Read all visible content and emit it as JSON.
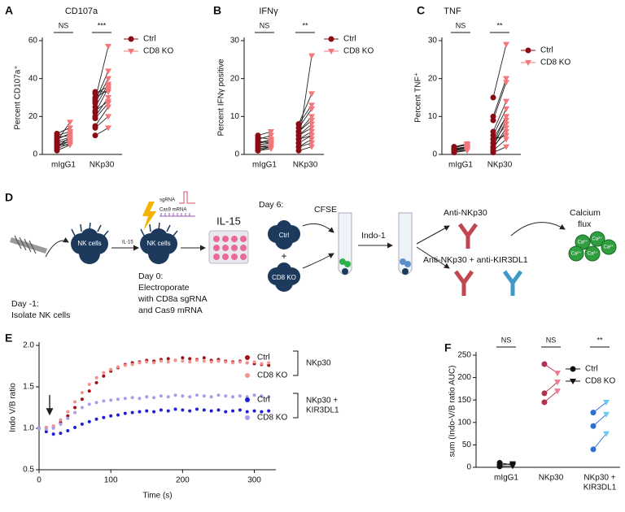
{
  "chart_data": [
    {
      "type": "paired_dot",
      "panel": "A",
      "title": "CD107a",
      "ylabel": "Percent CD107a⁺",
      "categories": [
        "mIgG1",
        "NKp30"
      ],
      "significance": [
        "NS",
        "***"
      ],
      "ylim": [
        0,
        60
      ],
      "yticks": [
        0,
        20,
        40,
        60
      ],
      "series": [
        {
          "name": "Ctrl",
          "color": "#8c0c16",
          "marker": "circle",
          "values": [
            [
              3,
              4,
              5,
              6,
              7,
              8,
              9,
              10,
              11,
              2,
              5,
              7,
              4,
              6
            ],
            [
              10,
              14,
              15,
              20,
              22,
              25,
              27,
              28,
              29,
              30,
              32,
              33,
              23,
              19
            ]
          ]
        },
        {
          "name": "CD8 KO",
          "color": "#f2777a",
          "marker": "triangle",
          "values": [
            [
              6,
              7,
              5,
              8,
              9,
              11,
              10,
              12,
              14,
              5,
              7,
              17,
              9,
              8
            ],
            [
              14,
              20,
              25,
              30,
              35,
              37,
              40,
              44,
              57,
              34,
              36,
              33,
              28,
              27
            ]
          ]
        }
      ]
    },
    {
      "type": "paired_dot",
      "panel": "B",
      "title": "IFNγ",
      "ylabel": "Percent IFNγ positive",
      "categories": [
        "mIgG1",
        "NKp30"
      ],
      "significance": [
        "NS",
        "**"
      ],
      "ylim": [
        0,
        30
      ],
      "yticks": [
        0,
        10,
        20,
        30
      ],
      "series": [
        {
          "name": "Ctrl",
          "color": "#8c0c16",
          "marker": "circle",
          "values": [
            [
              1,
              1.5,
              2,
              2.5,
              3,
              3.5,
              4,
              4.5,
              5,
              2,
              3,
              1,
              2.5,
              3
            ],
            [
              1,
              2,
              3,
              4,
              5,
              6,
              7,
              8,
              3,
              2,
              4,
              5,
              6,
              8
            ]
          ]
        },
        {
          "name": "CD8 KO",
          "color": "#f2777a",
          "marker": "triangle",
          "values": [
            [
              1.5,
              2,
              2,
              3,
              4,
              3,
              5,
              4,
              6,
              2.5,
              3.5,
              2,
              3,
              3.5
            ],
            [
              2,
              3,
              5,
              6,
              8,
              10,
              12,
              13,
              26,
              4,
              5,
              7,
              9,
              16
            ]
          ]
        }
      ]
    },
    {
      "type": "paired_dot",
      "panel": "C",
      "title": "TNF",
      "ylabel": "Percent TNF⁺",
      "categories": [
        "mIgG1",
        "NKp30"
      ],
      "significance": [
        "NS",
        "**"
      ],
      "ylim": [
        0,
        30
      ],
      "yticks": [
        0,
        10,
        20,
        30
      ],
      "series": [
        {
          "name": "Ctrl",
          "color": "#8c0c16",
          "marker": "circle",
          "values": [
            [
              0.5,
              1,
              1.5,
              2,
              1,
              0.8,
              1.2,
              2,
              1.5,
              1,
              0.7,
              1.8,
              1.3,
              1.6
            ],
            [
              0.5,
              1,
              2,
              3,
              4,
              5,
              6,
              9,
              10,
              15,
              2,
              3,
              1.5,
              4
            ]
          ]
        },
        {
          "name": "CD8 KO",
          "color": "#f2777a",
          "marker": "triangle",
          "values": [
            [
              1,
              1.5,
              2,
              2.5,
              1.8,
              1,
              2,
              2.8,
              2,
              1.5,
              1.2,
              2.5,
              2,
              1.8
            ],
            [
              2,
              4,
              6,
              8,
              10,
              12,
              14,
              19,
              20,
              29,
              9,
              10,
              7,
              5
            ]
          ]
        }
      ]
    },
    {
      "type": "scatter",
      "panel": "E",
      "xlabel": "Time (s)",
      "ylabel": "Indo V/B ratio",
      "xlim": [
        0,
        330
      ],
      "xticks": [
        0,
        100,
        200,
        300
      ],
      "ylim": [
        0.5,
        2.0
      ],
      "yticks": [
        0.5,
        {
          "value": 1.0,
          "label": "1.0"
        },
        1.5,
        {
          "value": 2.0,
          "label": "2.0"
        }
      ],
      "legend_groups": [
        [
          "NKp30"
        ],
        [
          "NKp30 +",
          "KIR3DL1"
        ]
      ],
      "x": [
        0,
        10,
        20,
        30,
        40,
        50,
        60,
        70,
        80,
        90,
        100,
        110,
        120,
        130,
        140,
        150,
        160,
        170,
        180,
        190,
        200,
        210,
        220,
        230,
        240,
        250,
        260,
        270,
        280,
        290,
        300,
        310,
        320
      ],
      "series": [
        {
          "name": "Ctrl",
          "color": "#a50f15",
          "values": [
            1.0,
            1.01,
            1.02,
            1.07,
            1.15,
            1.25,
            1.35,
            1.45,
            1.55,
            1.63,
            1.69,
            1.73,
            1.77,
            1.79,
            1.8,
            1.82,
            1.81,
            1.83,
            1.84,
            1.82,
            1.85,
            1.84,
            1.83,
            1.85,
            1.82,
            1.83,
            1.81,
            1.8,
            1.81,
            1.79,
            1.78,
            1.77,
            1.76
          ]
        },
        {
          "name": "CD8 KO",
          "color": "#f4918c",
          "values": [
            1.0,
            1.01,
            1.03,
            1.1,
            1.2,
            1.32,
            1.43,
            1.53,
            1.61,
            1.67,
            1.71,
            1.74,
            1.76,
            1.77,
            1.79,
            1.8,
            1.79,
            1.81,
            1.8,
            1.82,
            1.81,
            1.8,
            1.82,
            1.81,
            1.8,
            1.81,
            1.8,
            1.79,
            1.8,
            1.79,
            1.8,
            1.78,
            1.79
          ]
        },
        {
          "name": "Ctrl",
          "color": "#1f1fd6",
          "values": [
            1.0,
            0.96,
            0.93,
            0.94,
            0.97,
            1.01,
            1.05,
            1.08,
            1.11,
            1.13,
            1.15,
            1.16,
            1.18,
            1.19,
            1.2,
            1.21,
            1.2,
            1.22,
            1.21,
            1.23,
            1.22,
            1.21,
            1.23,
            1.22,
            1.21,
            1.22,
            1.2,
            1.21,
            1.22,
            1.2,
            1.21,
            1.2,
            1.21
          ]
        },
        {
          "name": "CD8 KO",
          "color": "#a99cea",
          "values": [
            1.0,
            0.99,
            1.0,
            1.05,
            1.12,
            1.19,
            1.25,
            1.29,
            1.31,
            1.33,
            1.34,
            1.35,
            1.36,
            1.37,
            1.36,
            1.38,
            1.37,
            1.39,
            1.38,
            1.4,
            1.39,
            1.38,
            1.4,
            1.39,
            1.38,
            1.4,
            1.39,
            1.38,
            1.39,
            1.38,
            1.4,
            1.39,
            1.38
          ]
        }
      ]
    },
    {
      "type": "paired_dot",
      "panel": "F",
      "ylabel": "sum (Indo-V/B ratio AUC)",
      "categories": [
        [
          "mIgG1"
        ],
        [
          "NKp30"
        ],
        [
          "NKp30 +",
          "KIR3DL1"
        ]
      ],
      "significance": [
        "NS",
        "NS",
        "**"
      ],
      "ylim": [
        0,
        250
      ],
      "yticks": [
        0,
        50,
        100,
        150,
        200,
        250
      ],
      "series": [
        {
          "name": "Ctrl",
          "color": "#111111",
          "marker": "circle",
          "colors": [
            "#111111",
            "#b3304f",
            "#2d6fd0"
          ],
          "values": [
            [
              5,
              10,
              2
            ],
            [
              230,
              165,
              145
            ],
            [
              122,
              92,
              40
            ]
          ]
        },
        {
          "name": "CD8 KO",
          "color": "#111111",
          "marker": "triangle",
          "colors": [
            "#111111",
            "#ef7a96",
            "#6ec8f2"
          ],
          "values": [
            [
              8,
              5,
              3
            ],
            [
              210,
              190,
              170
            ],
            [
              145,
              118,
              75
            ]
          ]
        }
      ]
    }
  ],
  "diagram": {
    "panel": "D",
    "day_minus1": "Day -1:",
    "isolate": "Isolate NK cells",
    "nk_cells": "NK cells",
    "il15_small": "IL-15",
    "sgrna": "sgRNA",
    "cas9": "Cas9 mRNA",
    "day0": [
      "Day 0:",
      "Electroporate",
      "with CD8a sgRNA",
      "and Cas9 mRNA"
    ],
    "il15_plate": "IL-15",
    "day6": "Day 6:",
    "ctrl": "Ctrl",
    "plus": "+",
    "cd8ko": "CD8 KO",
    "cfse": "CFSE",
    "indo1": "Indo-1",
    "anti_nkp30": "Anti-NKp30",
    "anti_both": "Anti-NKp30 + anti-KIR3DL1",
    "calcium": [
      "Calcium",
      "flux"
    ],
    "ca_ion": "Ca²⁺"
  }
}
